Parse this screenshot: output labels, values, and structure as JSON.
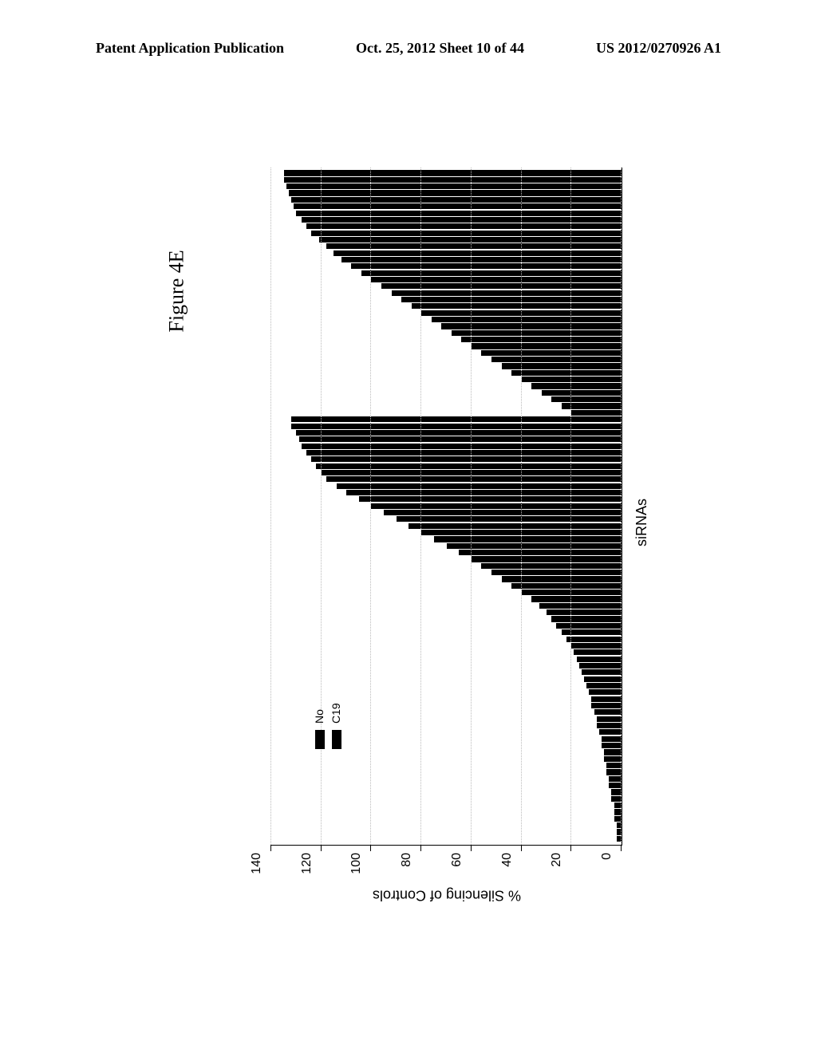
{
  "header": {
    "left": "Patent Application Publication",
    "center": "Oct. 25, 2012  Sheet 10 of 44",
    "right": "US 2012/0270926 A1"
  },
  "figure": {
    "title": "Figure 4E",
    "chart": {
      "type": "bar",
      "ylabel": "% Silencing of Controls",
      "xlabel": "siRNAs",
      "ylim": [
        0,
        140
      ],
      "yticks": [
        0,
        20,
        40,
        60,
        80,
        100,
        120,
        140
      ],
      "grid_color": "#bbbbbb",
      "bar_color": "#000000",
      "background_color": "#ffffff",
      "legend": {
        "items": [
          "No",
          "C19"
        ]
      },
      "series1_values": [
        2,
        2,
        2,
        3,
        3,
        3,
        4,
        4,
        5,
        5,
        6,
        6,
        7,
        7,
        8,
        8,
        9,
        10,
        10,
        11,
        12,
        12,
        13,
        14,
        15,
        16,
        17,
        18,
        19,
        20,
        22,
        24,
        26,
        28,
        30,
        33,
        36,
        40,
        44,
        48,
        52,
        56,
        60,
        65,
        70,
        75,
        80,
        85,
        90,
        95,
        100,
        105,
        110,
        114,
        118,
        120,
        122,
        124,
        126,
        128,
        129,
        130,
        132,
        132
      ],
      "series2_values": [
        20,
        24,
        28,
        32,
        36,
        40,
        44,
        48,
        52,
        56,
        60,
        64,
        68,
        72,
        76,
        80,
        84,
        88,
        92,
        96,
        100,
        104,
        108,
        112,
        115,
        118,
        121,
        124,
        126,
        128,
        130,
        131,
        132,
        133,
        134,
        135,
        135
      ]
    }
  }
}
